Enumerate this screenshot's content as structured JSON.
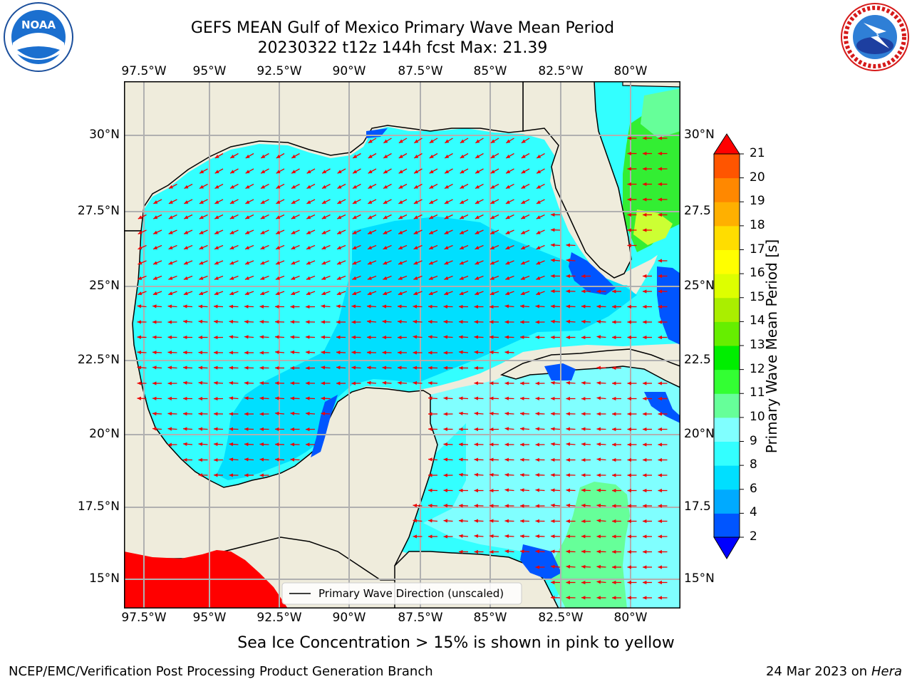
{
  "title_line1": "GEFS MEAN Gulf of Mexico Primary Wave Mean Period",
  "title_line2": "20230322 t12z 144h fcst   Max: 21.39",
  "logos": {
    "noaa_text": "NOAA",
    "noaa_ring": "NATIONAL OCEANIC AND ATMOSPHERIC ADMINISTRATION · U.S. DEPARTMENT OF COMMERCE",
    "nws_ring": "NATIONAL WEATHER SERVICE"
  },
  "map": {
    "lon_ticks": [
      "97.5°W",
      "95°W",
      "92.5°W",
      "90°W",
      "87.5°W",
      "85°W",
      "82.5°W",
      "80°W"
    ],
    "lat_ticks_left": [
      "30°N",
      "27.5°N",
      "25°N",
      "22.5°N",
      "20°N",
      "17.5°N",
      "15°N"
    ],
    "lat_ticks_right": [
      "30°N",
      "27.5",
      "25°N",
      "22.5",
      "20°N",
      "17.5",
      "15°N"
    ],
    "legend_label": "Primary Wave Direction (unscaled)"
  },
  "colorbar": {
    "label": "Primary Wave Mean Period [s]",
    "ticks": [
      "2",
      "4",
      "6",
      "8",
      "9",
      "10",
      "11",
      "12",
      "13",
      "14",
      "15",
      "16",
      "17",
      "18",
      "19",
      "20",
      "21"
    ],
    "colors": [
      "#0000ff",
      "#0055ff",
      "#00aaff",
      "#00dfff",
      "#33ffff",
      "#80ffff",
      "#66ff99",
      "#33ff33",
      "#00ee00",
      "#66ee00",
      "#aaee00",
      "#ddff00",
      "#ffff00",
      "#ffdd00",
      "#ffb000",
      "#ff8800",
      "#ff5500",
      "#ff2a00",
      "#ff0000"
    ]
  },
  "note": "Sea Ice Concentration > 15% is shown in pink to yellow",
  "footer_left": "NCEP/EMC/Verification Post Processing Product Generation Branch",
  "footer_right_prefix": "24 Mar 2023 on",
  "footer_right_host": "Hera"
}
